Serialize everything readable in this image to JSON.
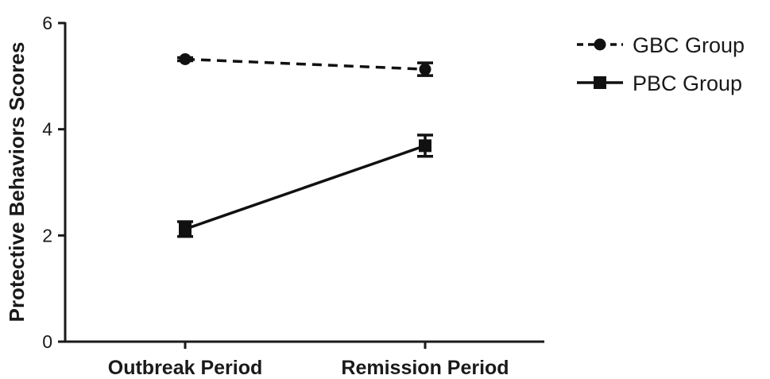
{
  "chart_data": {
    "type": "line",
    "title": "",
    "xlabel": "",
    "ylabel": "Protective Behaviors Scores",
    "categories": [
      "Outbreak Period",
      "Remission Period"
    ],
    "ylim": [
      0,
      6
    ],
    "yticks": [
      "0",
      "2",
      "4",
      "6"
    ],
    "grid": false,
    "legend_position": "top-right",
    "series": [
      {
        "name": "GBC Group",
        "values": [
          5.32,
          5.13
        ],
        "errors": [
          0.03,
          0.12
        ],
        "marker": "circle",
        "line_style": "dashed",
        "color": "#111111"
      },
      {
        "name": "PBC Group",
        "values": [
          2.12,
          3.69
        ],
        "errors": [
          0.14,
          0.2
        ],
        "marker": "square",
        "line_style": "solid",
        "color": "#111111"
      }
    ]
  }
}
